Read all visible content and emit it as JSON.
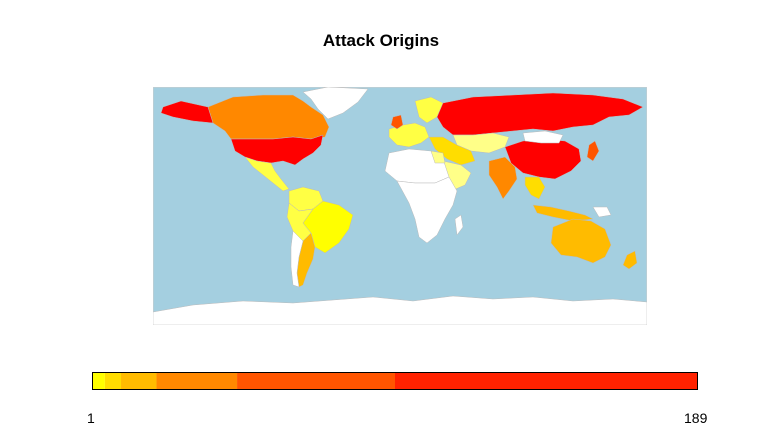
{
  "title": "Attack Origins",
  "colors": {
    "ocean": "#a4cfe0",
    "no_data": "#ffffff",
    "border": "#bbbbbb",
    "scale": [
      "#ffff00",
      "#ffdd00",
      "#ffbb00",
      "#ff8800",
      "#ff5500",
      "#ff2200",
      "#ff0000"
    ]
  },
  "legend": {
    "min_label": "1",
    "max_label": "189",
    "breaks": [
      1,
      5,
      10,
      21,
      46,
      95,
      189
    ]
  },
  "chart_data": {
    "type": "choropleth",
    "title": "Attack Origins",
    "scale_min": 1,
    "scale_max": 189,
    "regions": [
      {
        "name": "Russia",
        "level": 6
      },
      {
        "name": "United States",
        "level": 6
      },
      {
        "name": "China",
        "level": 6
      },
      {
        "name": "United Kingdom",
        "level": 5
      },
      {
        "name": "Canada",
        "level": 3
      },
      {
        "name": "India",
        "level": 4
      },
      {
        "name": "Brazil",
        "level": 0
      },
      {
        "name": "Argentina",
        "level": 2
      },
      {
        "name": "Australia",
        "level": 2
      },
      {
        "name": "Indonesia",
        "level": 2
      },
      {
        "name": "Japan",
        "level": 4
      },
      {
        "name": "Mexico",
        "level": 0
      }
    ]
  }
}
